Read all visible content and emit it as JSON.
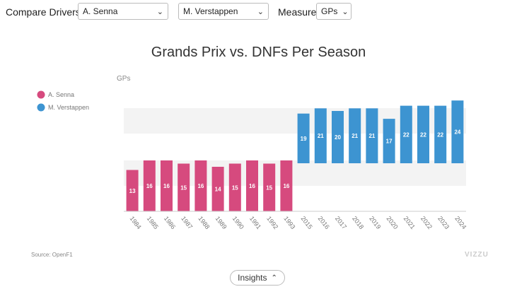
{
  "controls": {
    "compare_label": "Compare Drivers",
    "driver1": "A. Senna",
    "driver2": "M. Verstappen",
    "measure_label": "Measure",
    "measure_value": "GPs"
  },
  "footer": {
    "source": "Source: OpenF1",
    "brand": "VIZZU",
    "insights_label": "Insights"
  },
  "colors": {
    "senna": "#d64a7e",
    "verstappen": "#3d94d1"
  },
  "chart_data": {
    "type": "bar",
    "title": "Grands Prix vs. DNFs Per Season",
    "ylabel": "GPs",
    "legend_position": "left",
    "series": [
      {
        "name": "A. Senna",
        "x": [
          "1984",
          "1985",
          "1986",
          "1987",
          "1988",
          "1989",
          "1990",
          "1991",
          "1992",
          "1993"
        ],
        "values": [
          13,
          16,
          16,
          15,
          16,
          14,
          15,
          16,
          15,
          16
        ]
      },
      {
        "name": "M. Verstappen",
        "x": [
          "2015",
          "2016",
          "2017",
          "2018",
          "2019",
          "2020",
          "2021",
          "2022",
          "2023",
          "2024"
        ],
        "values": [
          19,
          21,
          20,
          21,
          21,
          17,
          22,
          22,
          22,
          24
        ]
      }
    ]
  }
}
